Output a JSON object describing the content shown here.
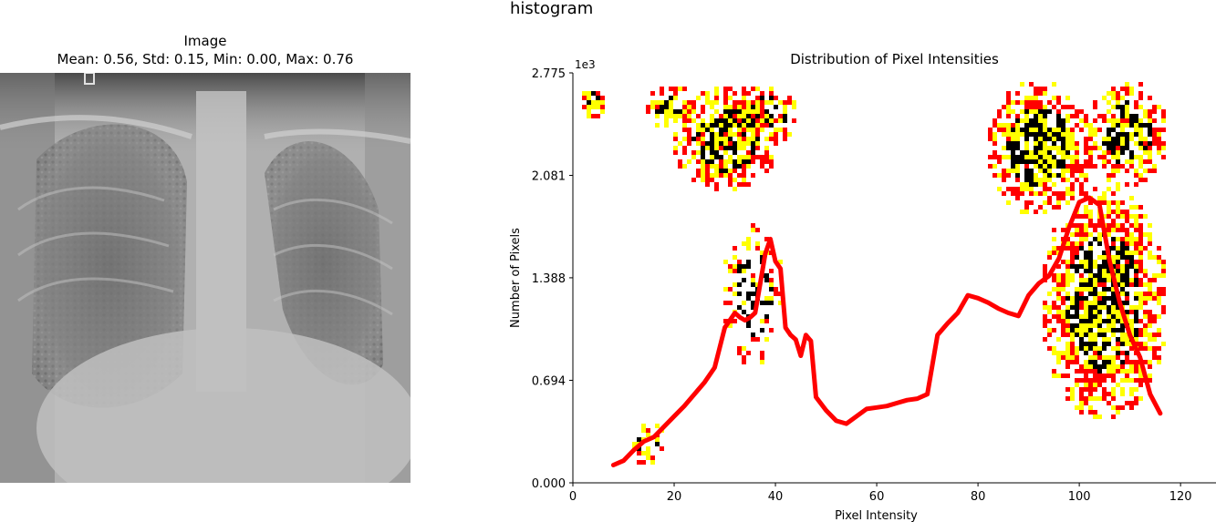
{
  "figure": {
    "title": "histogram"
  },
  "image_panel": {
    "title": "Image",
    "stats": "Mean: 0.56, Std: 0.15, Min: 0.00, Max: 0.76"
  },
  "chart_data": {
    "type": "line",
    "title": "Distribution of Pixel Intensities",
    "xlabel": "Pixel Intensity",
    "ylabel": "Number of Pixels",
    "y_multiplier_label": "1e3",
    "xlim": [
      0,
      127
    ],
    "ylim": [
      0,
      2.775
    ],
    "xticks": [
      0,
      20,
      40,
      60,
      80,
      100,
      120
    ],
    "yticks": [
      "0.000",
      "0.694",
      "1.388",
      "2.081",
      "2.775"
    ],
    "ytick_values": [
      0,
      0.694,
      1.388,
      2.081,
      2.775
    ],
    "grid": false,
    "line_color": "#ff0000",
    "overlay_colors": [
      "#ff0000",
      "#ffff00",
      "#000000"
    ],
    "series": [
      {
        "x": [
          8,
          10,
          12,
          14,
          16,
          18,
          20,
          22,
          24,
          26,
          28,
          30,
          32,
          33,
          34,
          35,
          36,
          37,
          38,
          39,
          40,
          41,
          42,
          43,
          44,
          45,
          46,
          47,
          48,
          50,
          52,
          54,
          56,
          58,
          60,
          62,
          64,
          66,
          68,
          70,
          72,
          74,
          76,
          78,
          80,
          82,
          84,
          86,
          88,
          90,
          92,
          94,
          96,
          98,
          100,
          102,
          104,
          106,
          108,
          110,
          112,
          114,
          116
        ],
        "y": [
          0.12,
          0.15,
          0.22,
          0.28,
          0.31,
          0.38,
          0.45,
          0.52,
          0.6,
          0.68,
          0.78,
          1.05,
          1.15,
          1.12,
          1.1,
          1.12,
          1.15,
          1.35,
          1.55,
          1.65,
          1.5,
          1.45,
          1.05,
          1.0,
          0.97,
          0.86,
          1.0,
          0.96,
          0.58,
          0.49,
          0.42,
          0.4,
          0.45,
          0.5,
          0.51,
          0.52,
          0.54,
          0.56,
          0.57,
          0.6,
          1.0,
          1.08,
          1.15,
          1.27,
          1.25,
          1.22,
          1.18,
          1.15,
          1.13,
          1.27,
          1.35,
          1.4,
          1.52,
          1.73,
          1.9,
          1.93,
          1.88,
          1.5,
          1.22,
          1.0,
          0.85,
          0.6,
          0.47
        ]
      }
    ]
  }
}
